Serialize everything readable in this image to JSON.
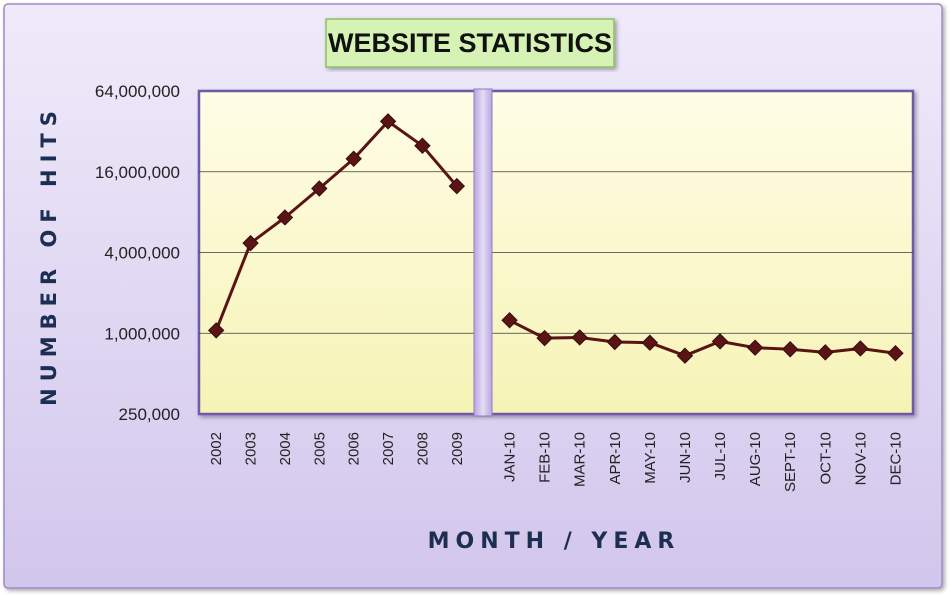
{
  "chart_data": {
    "type": "line",
    "title": "WEBSITE STATISTICS",
    "xlabel": "MONTH / YEAR",
    "ylabel": "NUMBER OF HITS",
    "y_scale": "log2",
    "ylim": [
      250000,
      64000000
    ],
    "y_ticks": [
      250000,
      1000000,
      4000000,
      16000000,
      64000000
    ],
    "y_tick_labels": [
      "250,000",
      "1,000,000",
      "4,000,000",
      "16,000,000",
      "64,000,000"
    ],
    "grid": true,
    "legend": "none",
    "panels": [
      {
        "categories": [
          "2002",
          "2003",
          "2004",
          "2005",
          "2006",
          "2007",
          "2008",
          "2009"
        ],
        "values": [
          1050000,
          4700000,
          7300000,
          12000000,
          20000000,
          38000000,
          25000000,
          12500000
        ]
      },
      {
        "categories": [
          "JAN-10",
          "FEB-10",
          "MAR-10",
          "APR-10",
          "MAY-10",
          "JUN-10",
          "JUL-10",
          "AUG-10",
          "SEPT-10",
          "OCT-10",
          "NOV-10",
          "DEC-10"
        ],
        "values": [
          1250000,
          920000,
          930000,
          860000,
          850000,
          680000,
          870000,
          780000,
          760000,
          720000,
          770000,
          710000
        ]
      }
    ],
    "colors": {
      "line": "#5a1414",
      "marker": "#5a1414",
      "plot_fill": "#fbf9cc",
      "frame_fill": "#e6dff5",
      "title_box": "#d6f2b4",
      "axis_title": "#1c2f52"
    }
  }
}
